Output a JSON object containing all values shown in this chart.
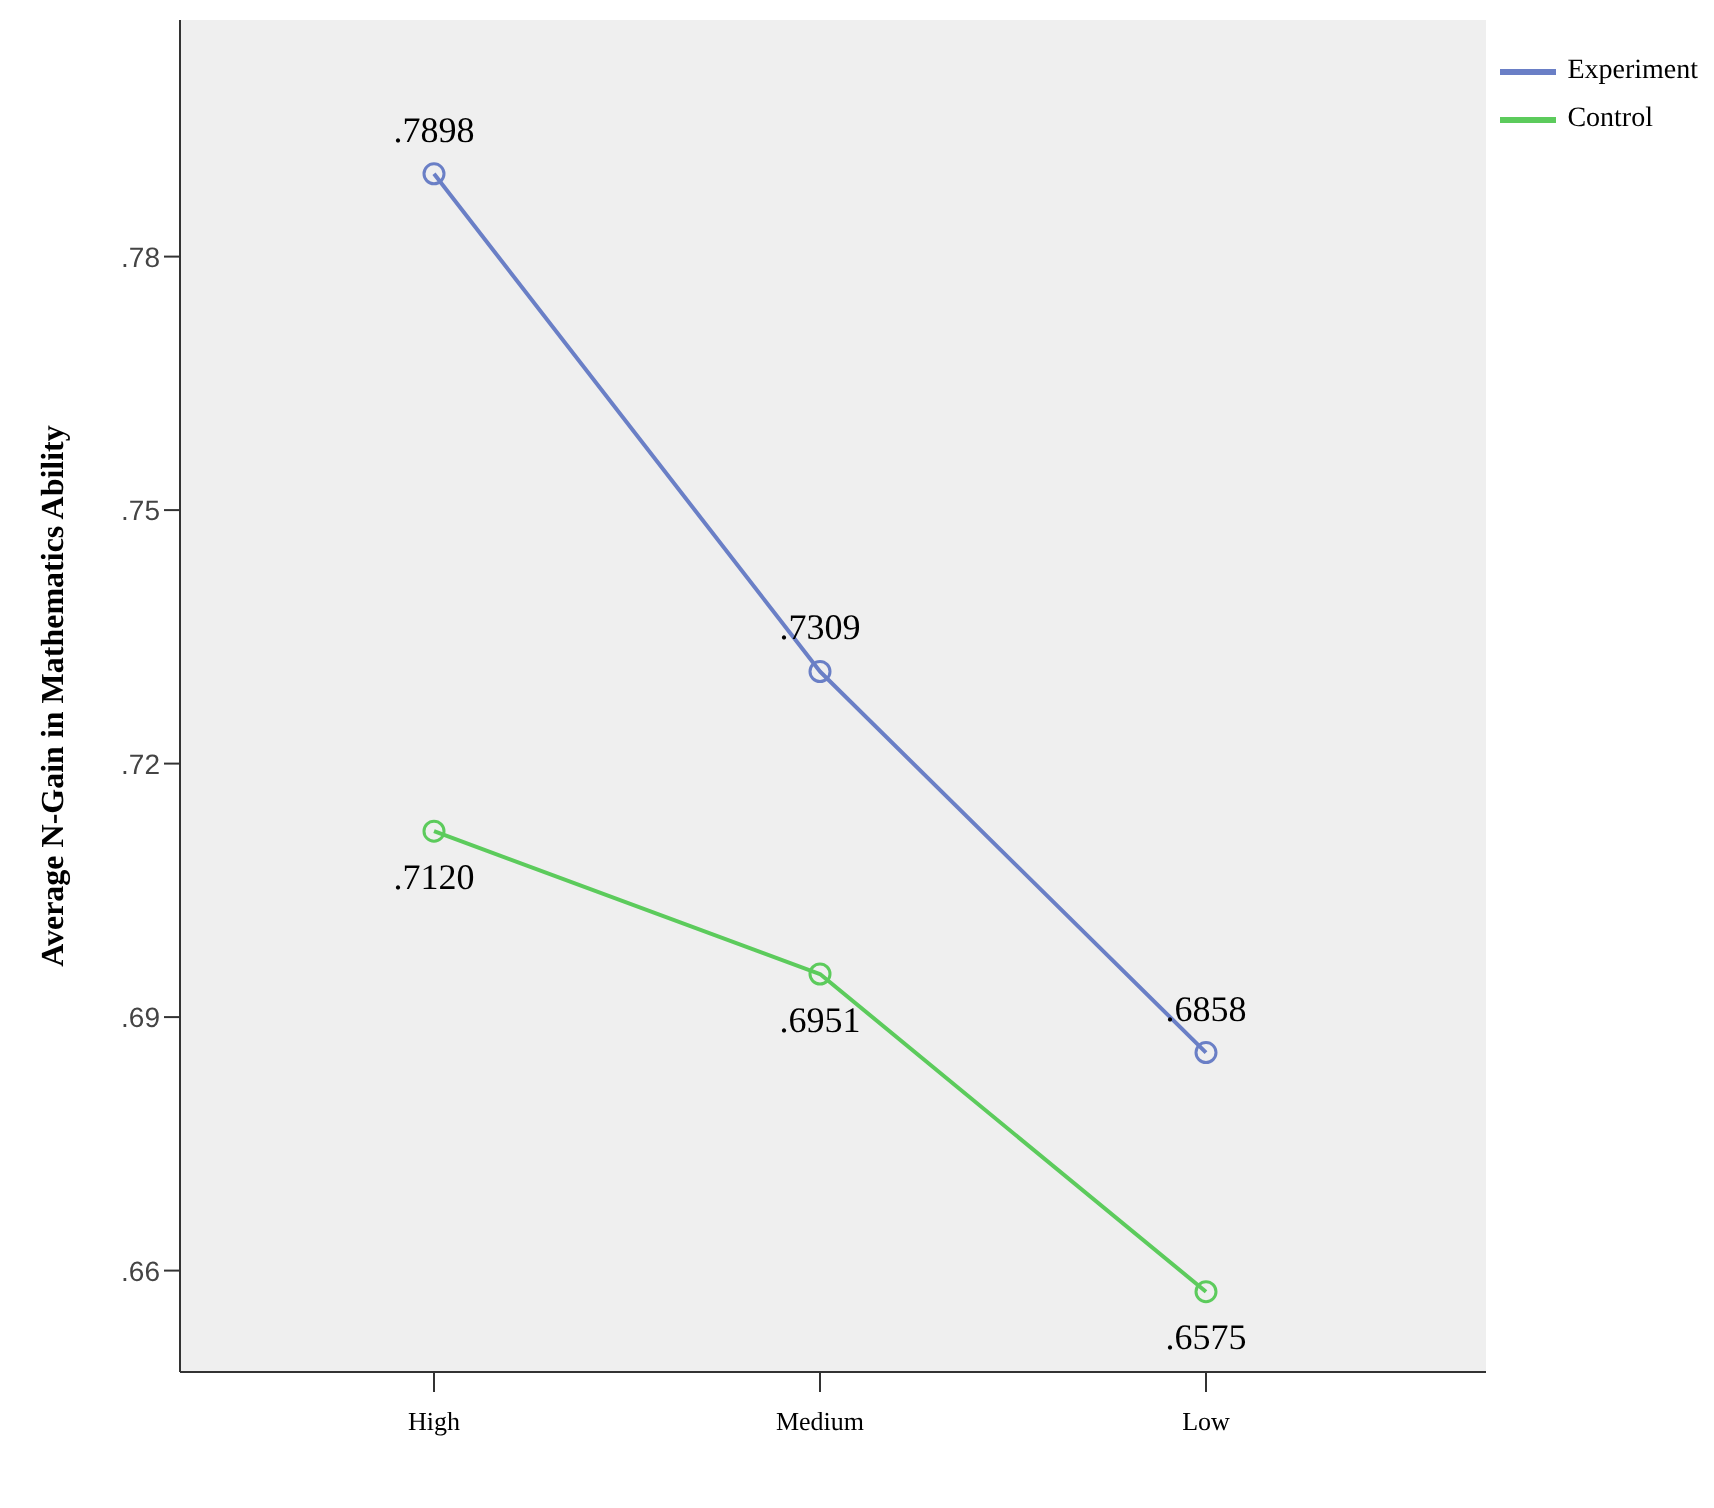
{
  "chart_data": {
    "type": "line",
    "ylabel": "Average N-Gain in Mathematics Ability",
    "categories": [
      "High",
      "Medium",
      "Low"
    ],
    "series": [
      {
        "name": "Experiment",
        "color": "#6a7fc6",
        "values": [
          0.7898,
          0.7309,
          0.6858
        ],
        "value_labels": [
          ".7898",
          ".7309",
          ".6858"
        ]
      },
      {
        "name": "Control",
        "color": "#5ccb5c",
        "values": [
          0.712,
          0.6951,
          0.6575
        ],
        "value_labels": [
          ".7120",
          ".6951",
          ".6575"
        ]
      }
    ],
    "ylim": [
      0.648,
      0.808
    ],
    "yticks": [
      {
        "value": 0.66,
        "label": ".66"
      },
      {
        "value": 0.69,
        "label": ".69"
      },
      {
        "value": 0.72,
        "label": ".72"
      },
      {
        "value": 0.75,
        "label": ".75"
      },
      {
        "value": 0.78,
        "label": ".78"
      }
    ],
    "grid": false,
    "legend": "top right",
    "marker": "circle"
  }
}
